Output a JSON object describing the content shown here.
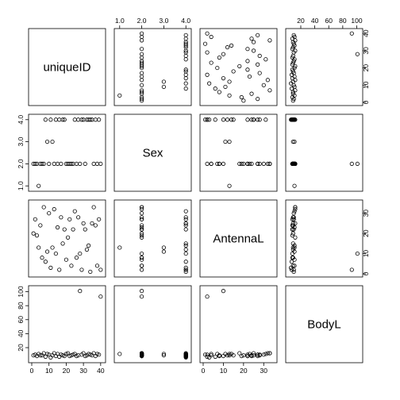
{
  "chart_data": {
    "type": "scatter",
    "title": "",
    "variables": [
      {
        "name": "uniqueID",
        "range": [
          0,
          41
        ],
        "ticks": [
          0,
          10,
          20,
          30,
          40
        ]
      },
      {
        "name": "Sex",
        "range": [
          0.9,
          4.1
        ],
        "ticks": [
          1.0,
          2.0,
          3.0,
          4.0
        ],
        "tick_labels": [
          "1.0",
          "2.0",
          "3.0",
          "4.0"
        ]
      },
      {
        "name": "AntennaL",
        "range": [
          0,
          35
        ],
        "ticks": [
          0,
          10,
          20,
          30
        ]
      },
      {
        "name": "BodyL",
        "range": [
          3,
          104
        ],
        "ticks": [
          20,
          40,
          60,
          80,
          100
        ]
      }
    ],
    "observations": {
      "uniqueID": [
        1,
        2,
        3,
        4,
        5,
        6,
        7,
        8,
        9,
        10,
        11,
        12,
        13,
        14,
        15,
        16,
        17,
        18,
        19,
        20,
        21,
        22,
        23,
        24,
        25,
        26,
        27,
        28,
        29,
        30,
        31,
        32,
        33,
        34,
        35,
        36,
        37,
        38,
        39,
        40
      ],
      "Sex": [
        2,
        2,
        2,
        1,
        2,
        2,
        2,
        4,
        3,
        2,
        4,
        3,
        2,
        4,
        2,
        4,
        2,
        4,
        4,
        2,
        2,
        2,
        2,
        2,
        4,
        2,
        4,
        2,
        4,
        4,
        2,
        4,
        4,
        4,
        4,
        2,
        4,
        2,
        4,
        2
      ],
      "AntennaL": [
        20,
        27,
        19,
        13,
        24,
        8,
        33,
        6,
        11,
        30,
        3,
        13,
        32,
        10,
        23,
        2,
        28,
        15,
        22,
        7,
        18,
        27,
        4,
        22,
        31,
        8,
        28,
        10,
        2,
        25,
        22,
        12,
        14,
        1,
        25,
        33,
        24,
        4,
        27,
        2
      ],
      "BodyL": [
        9,
        10,
        8,
        11,
        9,
        9,
        12,
        7,
        11,
        10,
        6,
        9,
        12,
        8,
        11,
        7,
        10,
        9,
        8,
        11,
        12,
        8,
        9,
        10,
        11,
        8,
        9,
        101,
        10,
        12,
        8,
        9,
        11,
        10,
        9,
        12,
        8,
        11,
        10,
        93
      ]
    },
    "panel_labels": [
      "uniqueID",
      "Sex",
      "AntennaL",
      "BodyL"
    ]
  }
}
